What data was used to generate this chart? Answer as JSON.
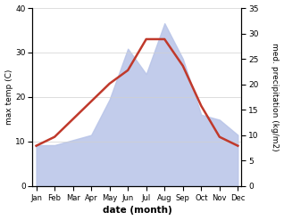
{
  "months": [
    "Jan",
    "Feb",
    "Mar",
    "Apr",
    "May",
    "Jun",
    "Jul",
    "Aug",
    "Sep",
    "Oct",
    "Nov",
    "Dec"
  ],
  "max_temp": [
    9,
    11,
    15,
    19,
    23,
    26,
    33,
    33,
    27,
    18,
    11,
    9
  ],
  "precipitation": [
    8,
    8,
    9,
    10,
    17,
    27,
    22,
    32,
    25,
    14,
    13,
    10
  ],
  "temp_color": "#c0392b",
  "precip_color": "#b8c4e8",
  "left_ylim": [
    0,
    40
  ],
  "right_ylim": [
    0,
    35
  ],
  "left_yticks": [
    0,
    10,
    20,
    30,
    40
  ],
  "right_yticks": [
    0,
    5,
    10,
    15,
    20,
    25,
    30,
    35
  ],
  "xlabel": "date (month)",
  "ylabel_left": "max temp (C)",
  "ylabel_right": "med. precipitation (kg/m2)",
  "bg_color": "#ffffff"
}
